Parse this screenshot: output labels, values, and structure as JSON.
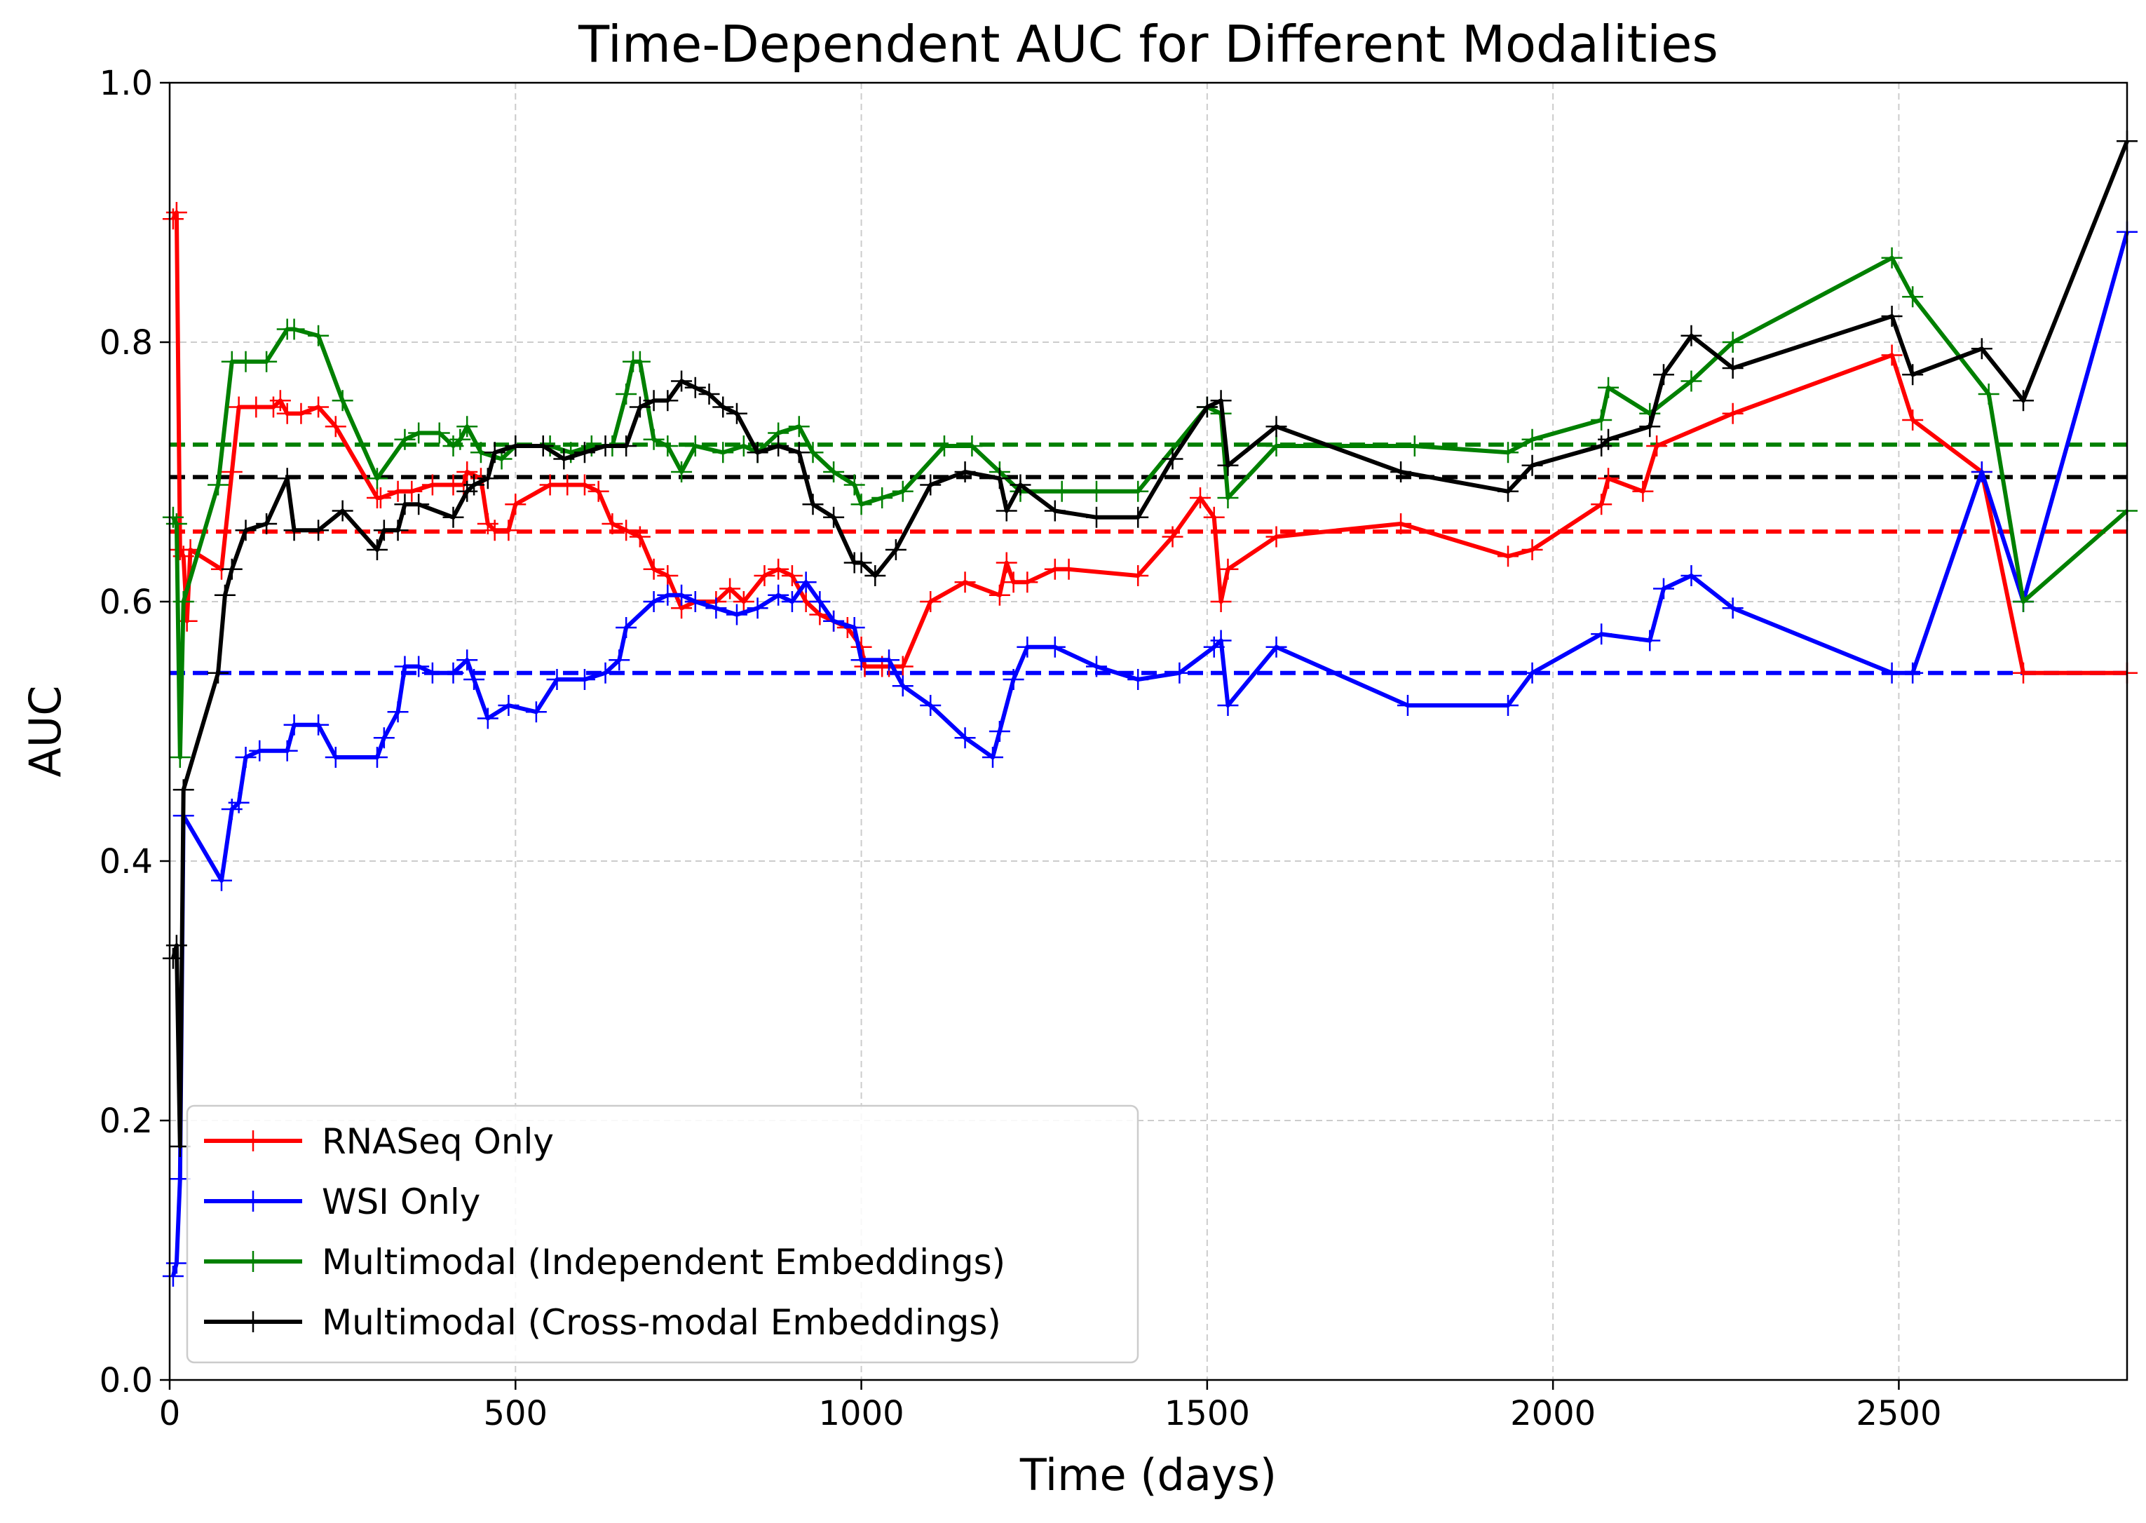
{
  "chart_data": {
    "type": "line",
    "title": "Time-Dependent AUC for Different Modalities",
    "xlabel": "Time (days)",
    "ylabel": "AUC",
    "xlim": [
      0,
      2830
    ],
    "ylim": [
      0.0,
      1.0
    ],
    "xticks": [
      0,
      500,
      1000,
      1500,
      2000,
      2500
    ],
    "yticks": [
      0.0,
      0.2,
      0.4,
      0.6,
      0.8,
      1.0
    ],
    "xtick_labels": [
      "0",
      "500",
      "1000",
      "1500",
      "2000",
      "2500"
    ],
    "ytick_labels": [
      "0.0",
      "0.2",
      "0.4",
      "0.6",
      "0.8",
      "1.0"
    ],
    "grid": true,
    "legend_position": "lower-left",
    "marker": "plus",
    "series": [
      {
        "name": "RNASeq Only",
        "color": "#ff0000",
        "mean_auc": 0.654,
        "points": [
          [
            5,
            0.895
          ],
          [
            10,
            0.9
          ],
          [
            15,
            0.64
          ],
          [
            20,
            0.635
          ],
          [
            25,
            0.585
          ],
          [
            30,
            0.64
          ],
          [
            75,
            0.625
          ],
          [
            90,
            0.7
          ],
          [
            100,
            0.75
          ],
          [
            125,
            0.75
          ],
          [
            150,
            0.75
          ],
          [
            160,
            0.755
          ],
          [
            170,
            0.745
          ],
          [
            190,
            0.745
          ],
          [
            215,
            0.75
          ],
          [
            240,
            0.735
          ],
          [
            300,
            0.68
          ],
          [
            305,
            0.68
          ],
          [
            330,
            0.685
          ],
          [
            350,
            0.685
          ],
          [
            380,
            0.69
          ],
          [
            410,
            0.69
          ],
          [
            425,
            0.69
          ],
          [
            430,
            0.7
          ],
          [
            450,
            0.695
          ],
          [
            460,
            0.66
          ],
          [
            470,
            0.655
          ],
          [
            490,
            0.655
          ],
          [
            500,
            0.675
          ],
          [
            550,
            0.69
          ],
          [
            575,
            0.69
          ],
          [
            600,
            0.69
          ],
          [
            620,
            0.685
          ],
          [
            640,
            0.66
          ],
          [
            660,
            0.655
          ],
          [
            680,
            0.65
          ],
          [
            700,
            0.625
          ],
          [
            720,
            0.62
          ],
          [
            740,
            0.595
          ],
          [
            760,
            0.6
          ],
          [
            790,
            0.6
          ],
          [
            810,
            0.61
          ],
          [
            830,
            0.6
          ],
          [
            860,
            0.62
          ],
          [
            880,
            0.625
          ],
          [
            900,
            0.62
          ],
          [
            920,
            0.6
          ],
          [
            940,
            0.59
          ],
          [
            960,
            0.585
          ],
          [
            980,
            0.58
          ],
          [
            1000,
            0.565
          ],
          [
            1005,
            0.55
          ],
          [
            1030,
            0.55
          ],
          [
            1040,
            0.55
          ],
          [
            1060,
            0.55
          ],
          [
            1100,
            0.6
          ],
          [
            1150,
            0.615
          ],
          [
            1200,
            0.605
          ],
          [
            1210,
            0.63
          ],
          [
            1220,
            0.615
          ],
          [
            1240,
            0.615
          ],
          [
            1280,
            0.625
          ],
          [
            1300,
            0.625
          ],
          [
            1400,
            0.62
          ],
          [
            1450,
            0.65
          ],
          [
            1490,
            0.68
          ],
          [
            1510,
            0.665
          ],
          [
            1520,
            0.6
          ],
          [
            1530,
            0.625
          ],
          [
            1600,
            0.65
          ],
          [
            1780,
            0.66
          ],
          [
            1935,
            0.635
          ],
          [
            1970,
            0.64
          ],
          [
            2070,
            0.675
          ],
          [
            2080,
            0.695
          ],
          [
            2130,
            0.685
          ],
          [
            2150,
            0.72
          ],
          [
            2260,
            0.745
          ],
          [
            2490,
            0.79
          ],
          [
            2520,
            0.74
          ],
          [
            2620,
            0.7
          ],
          [
            2680,
            0.545
          ],
          [
            2830,
            0.545
          ]
        ]
      },
      {
        "name": "WSI Only",
        "color": "#0000ff",
        "mean_auc": 0.545,
        "points": [
          [
            5,
            0.08
          ],
          [
            10,
            0.09
          ],
          [
            15,
            0.155
          ],
          [
            20,
            0.435
          ],
          [
            75,
            0.385
          ],
          [
            90,
            0.44
          ],
          [
            100,
            0.445
          ],
          [
            110,
            0.48
          ],
          [
            130,
            0.485
          ],
          [
            170,
            0.485
          ],
          [
            180,
            0.505
          ],
          [
            215,
            0.505
          ],
          [
            240,
            0.48
          ],
          [
            300,
            0.48
          ],
          [
            310,
            0.495
          ],
          [
            330,
            0.515
          ],
          [
            340,
            0.55
          ],
          [
            360,
            0.55
          ],
          [
            380,
            0.545
          ],
          [
            410,
            0.545
          ],
          [
            430,
            0.555
          ],
          [
            440,
            0.54
          ],
          [
            460,
            0.51
          ],
          [
            490,
            0.52
          ],
          [
            530,
            0.515
          ],
          [
            560,
            0.54
          ],
          [
            600,
            0.54
          ],
          [
            630,
            0.545
          ],
          [
            650,
            0.555
          ],
          [
            660,
            0.58
          ],
          [
            700,
            0.6
          ],
          [
            720,
            0.605
          ],
          [
            740,
            0.605
          ],
          [
            760,
            0.6
          ],
          [
            790,
            0.595
          ],
          [
            820,
            0.59
          ],
          [
            850,
            0.595
          ],
          [
            880,
            0.605
          ],
          [
            900,
            0.6
          ],
          [
            920,
            0.615
          ],
          [
            940,
            0.6
          ],
          [
            960,
            0.585
          ],
          [
            990,
            0.58
          ],
          [
            1000,
            0.555
          ],
          [
            1040,
            0.555
          ],
          [
            1060,
            0.535
          ],
          [
            1100,
            0.52
          ],
          [
            1150,
            0.495
          ],
          [
            1190,
            0.48
          ],
          [
            1200,
            0.5
          ],
          [
            1220,
            0.54
          ],
          [
            1240,
            0.565
          ],
          [
            1280,
            0.565
          ],
          [
            1340,
            0.55
          ],
          [
            1400,
            0.54
          ],
          [
            1460,
            0.545
          ],
          [
            1510,
            0.565
          ],
          [
            1520,
            0.57
          ],
          [
            1530,
            0.52
          ],
          [
            1600,
            0.565
          ],
          [
            1790,
            0.52
          ],
          [
            1935,
            0.52
          ],
          [
            1970,
            0.545
          ],
          [
            2070,
            0.575
          ],
          [
            2140,
            0.57
          ],
          [
            2160,
            0.61
          ],
          [
            2200,
            0.62
          ],
          [
            2260,
            0.595
          ],
          [
            2490,
            0.545
          ],
          [
            2520,
            0.545
          ],
          [
            2620,
            0.7
          ],
          [
            2680,
            0.6
          ],
          [
            2830,
            0.885
          ]
        ]
      },
      {
        "name": "Multimodal (Independent Embeddings)",
        "color": "#008000",
        "mean_auc": 0.721,
        "points": [
          [
            5,
            0.665
          ],
          [
            10,
            0.66
          ],
          [
            15,
            0.48
          ],
          [
            20,
            0.6
          ],
          [
            70,
            0.69
          ],
          [
            90,
            0.785
          ],
          [
            110,
            0.785
          ],
          [
            140,
            0.785
          ],
          [
            170,
            0.81
          ],
          [
            180,
            0.81
          ],
          [
            215,
            0.805
          ],
          [
            250,
            0.755
          ],
          [
            300,
            0.695
          ],
          [
            340,
            0.725
          ],
          [
            360,
            0.73
          ],
          [
            390,
            0.73
          ],
          [
            410,
            0.72
          ],
          [
            420,
            0.725
          ],
          [
            430,
            0.735
          ],
          [
            450,
            0.715
          ],
          [
            480,
            0.71
          ],
          [
            500,
            0.72
          ],
          [
            550,
            0.72
          ],
          [
            580,
            0.715
          ],
          [
            610,
            0.72
          ],
          [
            640,
            0.72
          ],
          [
            660,
            0.76
          ],
          [
            670,
            0.785
          ],
          [
            680,
            0.785
          ],
          [
            700,
            0.725
          ],
          [
            720,
            0.72
          ],
          [
            740,
            0.7
          ],
          [
            760,
            0.72
          ],
          [
            800,
            0.715
          ],
          [
            830,
            0.72
          ],
          [
            850,
            0.715
          ],
          [
            880,
            0.73
          ],
          [
            910,
            0.735
          ],
          [
            930,
            0.715
          ],
          [
            960,
            0.7
          ],
          [
            990,
            0.69
          ],
          [
            1000,
            0.675
          ],
          [
            1030,
            0.68
          ],
          [
            1060,
            0.685
          ],
          [
            1120,
            0.72
          ],
          [
            1160,
            0.72
          ],
          [
            1200,
            0.7
          ],
          [
            1230,
            0.685
          ],
          [
            1290,
            0.685
          ],
          [
            1340,
            0.685
          ],
          [
            1400,
            0.685
          ],
          [
            1500,
            0.75
          ],
          [
            1520,
            0.745
          ],
          [
            1530,
            0.68
          ],
          [
            1600,
            0.72
          ],
          [
            1800,
            0.72
          ],
          [
            1935,
            0.715
          ],
          [
            1970,
            0.725
          ],
          [
            2070,
            0.74
          ],
          [
            2080,
            0.765
          ],
          [
            2140,
            0.745
          ],
          [
            2200,
            0.77
          ],
          [
            2260,
            0.8
          ],
          [
            2490,
            0.865
          ],
          [
            2520,
            0.835
          ],
          [
            2630,
            0.76
          ],
          [
            2680,
            0.6
          ],
          [
            2830,
            0.67
          ]
        ]
      },
      {
        "name": "Multimodal (Cross-modal Embeddings)",
        "color": "#000000",
        "mean_auc": 0.696,
        "points": [
          [
            5,
            0.325
          ],
          [
            10,
            0.335
          ],
          [
            15,
            0.18
          ],
          [
            20,
            0.455
          ],
          [
            70,
            0.545
          ],
          [
            80,
            0.605
          ],
          [
            90,
            0.625
          ],
          [
            110,
            0.655
          ],
          [
            140,
            0.66
          ],
          [
            170,
            0.695
          ],
          [
            180,
            0.655
          ],
          [
            215,
            0.655
          ],
          [
            250,
            0.67
          ],
          [
            300,
            0.64
          ],
          [
            310,
            0.655
          ],
          [
            330,
            0.655
          ],
          [
            340,
            0.675
          ],
          [
            360,
            0.675
          ],
          [
            410,
            0.665
          ],
          [
            430,
            0.685
          ],
          [
            440,
            0.69
          ],
          [
            460,
            0.695
          ],
          [
            470,
            0.715
          ],
          [
            500,
            0.72
          ],
          [
            540,
            0.72
          ],
          [
            570,
            0.71
          ],
          [
            600,
            0.715
          ],
          [
            630,
            0.72
          ],
          [
            660,
            0.72
          ],
          [
            680,
            0.75
          ],
          [
            700,
            0.755
          ],
          [
            720,
            0.755
          ],
          [
            740,
            0.77
          ],
          [
            760,
            0.765
          ],
          [
            780,
            0.76
          ],
          [
            800,
            0.75
          ],
          [
            820,
            0.745
          ],
          [
            850,
            0.715
          ],
          [
            880,
            0.72
          ],
          [
            910,
            0.715
          ],
          [
            930,
            0.675
          ],
          [
            960,
            0.665
          ],
          [
            990,
            0.63
          ],
          [
            1000,
            0.63
          ],
          [
            1020,
            0.62
          ],
          [
            1050,
            0.64
          ],
          [
            1100,
            0.69
          ],
          [
            1150,
            0.7
          ],
          [
            1200,
            0.695
          ],
          [
            1210,
            0.67
          ],
          [
            1230,
            0.69
          ],
          [
            1280,
            0.67
          ],
          [
            1340,
            0.665
          ],
          [
            1400,
            0.665
          ],
          [
            1450,
            0.71
          ],
          [
            1500,
            0.75
          ],
          [
            1520,
            0.755
          ],
          [
            1530,
            0.705
          ],
          [
            1600,
            0.735
          ],
          [
            1780,
            0.7
          ],
          [
            1935,
            0.685
          ],
          [
            1970,
            0.705
          ],
          [
            2070,
            0.72
          ],
          [
            2080,
            0.725
          ],
          [
            2140,
            0.735
          ],
          [
            2160,
            0.775
          ],
          [
            2200,
            0.805
          ],
          [
            2260,
            0.78
          ],
          [
            2490,
            0.82
          ],
          [
            2520,
            0.775
          ],
          [
            2620,
            0.795
          ],
          [
            2680,
            0.755
          ],
          [
            2830,
            0.955
          ]
        ]
      }
    ]
  }
}
